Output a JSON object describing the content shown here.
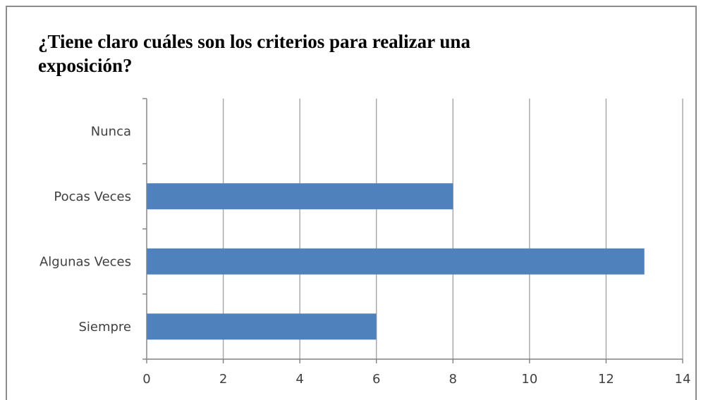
{
  "chart_data": {
    "type": "bar",
    "orientation": "horizontal",
    "title_lines": [
      "¿Tiene claro cuáles son los criterios para realizar una",
      "exposición?"
    ],
    "categories": [
      "Nunca",
      "Pocas Veces",
      "Algunas Veces",
      "Siempre"
    ],
    "values": [
      0,
      8,
      13,
      6
    ],
    "xlim": [
      0,
      14
    ],
    "xticks": [
      0,
      2,
      4,
      6,
      8,
      10,
      12,
      14
    ],
    "xlabel": "",
    "ylabel": "",
    "grid": "vertical",
    "legend": "none",
    "bar_color": "#4f81bd",
    "grid_color": "#a6a6a6",
    "axis_color": "#808080"
  }
}
